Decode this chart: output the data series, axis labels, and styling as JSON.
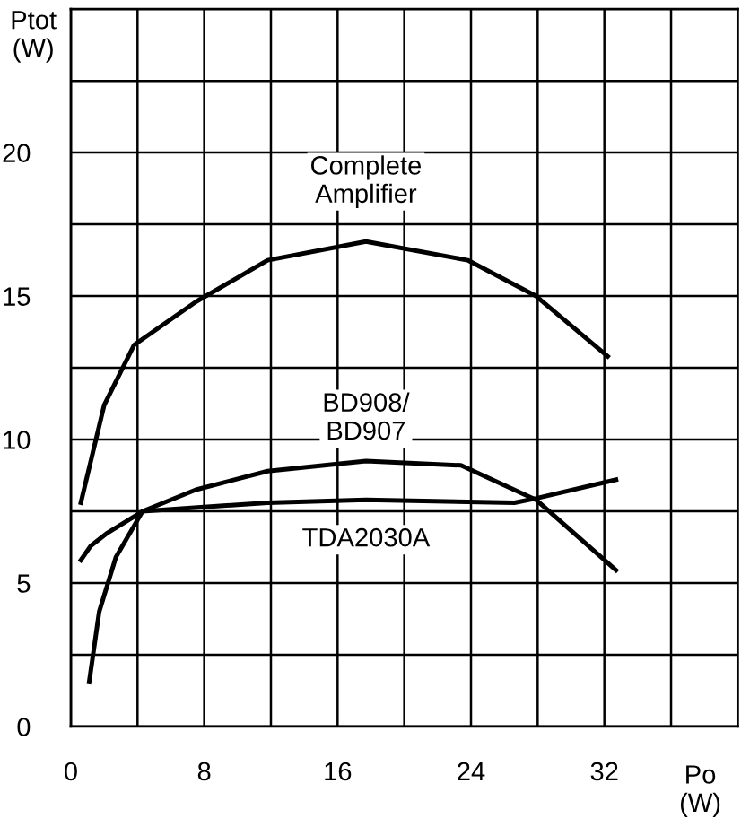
{
  "chart_data": {
    "type": "line",
    "xlabel": "Po\n(W)",
    "ylabel": "Ptot\n(W)",
    "xlim": [
      0,
      40
    ],
    "ylim": [
      0,
      25
    ],
    "xticks": [
      0,
      {
        "value": 4,
        "label": null
      },
      8,
      {
        "value": 12,
        "label": null
      },
      16,
      {
        "value": 20,
        "label": null
      },
      24,
      {
        "value": 28,
        "label": null
      },
      32,
      {
        "value": 36,
        "label": null
      }
    ],
    "yticks": [
      0,
      {
        "value": 2.5,
        "label": null
      },
      5,
      {
        "value": 7.5,
        "label": null
      },
      10,
      {
        "value": 12.5,
        "label": null
      },
      15,
      {
        "value": 17.5,
        "label": null
      },
      20,
      {
        "value": 22.5,
        "label": null
      }
    ],
    "grid": true,
    "marker": "none",
    "line_style": "solid",
    "series": [
      {
        "name": "Complete\nAmplifier",
        "color": "#000000",
        "x": [
          0.6,
          2,
          3.8,
          7.5,
          11.8,
          17.7,
          23.8,
          27.9,
          32.2
        ],
        "values": [
          7.8,
          11.2,
          13.3,
          14.8,
          16.25,
          16.9,
          16.25,
          15.0,
          12.9
        ]
      },
      {
        "name": "BD908/\nBD907",
        "color": "#000000",
        "x": [
          1.1,
          1.7,
          2.7,
          4.3,
          7.5,
          11.8,
          17.7,
          23.4,
          27.9,
          32.7
        ],
        "values": [
          1.55,
          4.0,
          5.9,
          7.5,
          8.25,
          8.9,
          9.25,
          9.1,
          7.9,
          5.45
        ]
      },
      {
        "name": "TDA2030A",
        "color": "#000000",
        "x": [
          0.6,
          1.2,
          2.2,
          4.3,
          11.8,
          17.7,
          26.6,
          27.9,
          32.7
        ],
        "values": [
          5.8,
          6.3,
          6.75,
          7.5,
          7.8,
          7.9,
          7.8,
          7.95,
          8.6
        ]
      }
    ]
  }
}
